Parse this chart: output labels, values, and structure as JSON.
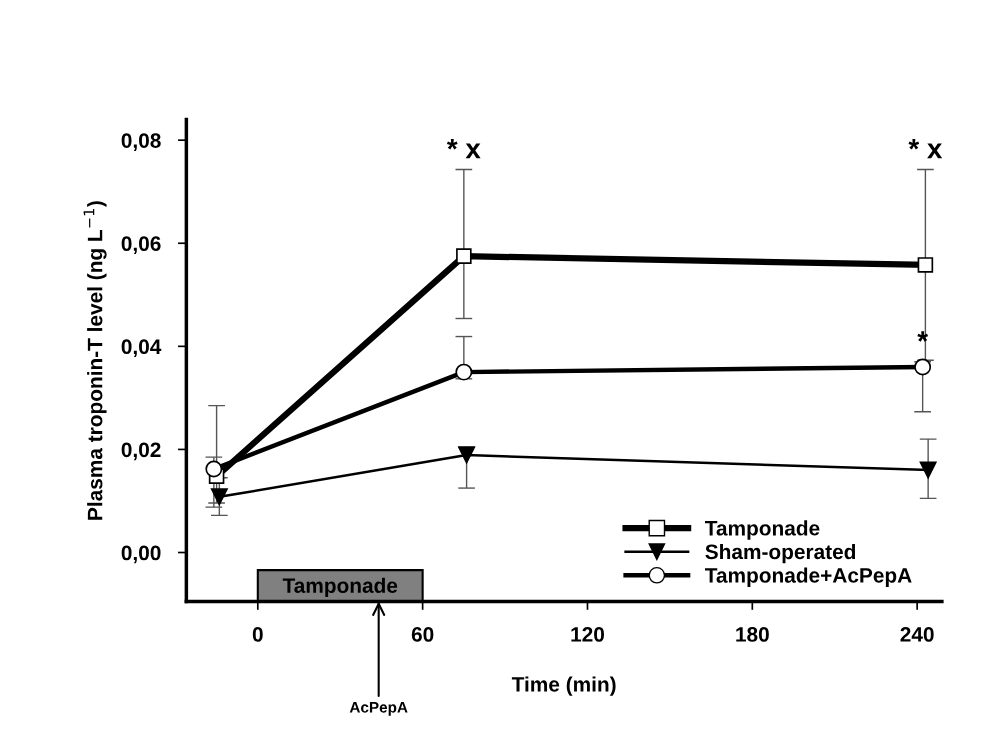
{
  "chart_data": {
    "type": "line",
    "xlabel": "Time (min)",
    "ylabel": "Plasma troponin-T level (ng L$^{−1}$)",
    "xlim": [
      -26,
      249
    ],
    "xticks": [
      0,
      60,
      120,
      180,
      240
    ],
    "ylim": [
      -0.0095,
      0.084
    ],
    "yticks": [
      {
        "value": 0,
        "label": "0,00"
      },
      {
        "value": 0.02,
        "label": "0,02"
      },
      {
        "value": 0.04,
        "label": "0,04"
      },
      {
        "value": 0.06,
        "label": "0,06"
      },
      {
        "value": 0.08,
        "label": "0,08"
      }
    ],
    "grid": false,
    "legend": "bottom right",
    "series": [
      {
        "name": "Tamponade",
        "color": "#000000",
        "marker": "square",
        "x": [
          -15,
          75,
          243
        ],
        "values": [
          0.0148,
          0.0575,
          0.0558
        ],
        "errors": [
          [
            0.0096,
            0.0285
          ],
          [
            0.0454,
            0.0743
          ],
          [
            0.0373,
            0.0743
          ]
        ]
      },
      {
        "name": "Sham-operated",
        "color": "#000000",
        "marker": "triangle",
        "x": [
          -14,
          76,
          244
        ],
        "values": [
          0.0108,
          0.0189,
          0.016
        ],
        "errors": [
          [
            0.0072,
            0.0145
          ],
          [
            0.0125,
            0.0205
          ],
          [
            0.0105,
            0.022
          ]
        ]
      },
      {
        "name": "Tamponade+AcPepA",
        "color": "#000000",
        "marker": "circle",
        "x": [
          -16,
          75,
          242
        ],
        "values": [
          0.0162,
          0.035,
          0.036
        ],
        "errors": [
          [
            0.0088,
            0.0185
          ],
          [
            0.0337,
            0.0419
          ],
          [
            0.0273,
            0.037
          ]
        ]
      }
    ],
    "bands": [
      {
        "axis": "x",
        "from": 0,
        "to": 60,
        "label": "Tamponade",
        "color": "#808080"
      }
    ],
    "annotations": [
      {
        "text": "* x",
        "x": 75,
        "y": 0.0743
      },
      {
        "text": "* x",
        "x": 243,
        "y": 0.0743
      },
      {
        "text": "*",
        "x": 242,
        "y": 0.037
      },
      {
        "text": "AcPepA",
        "x": 44,
        "y": -0.0095
      }
    ]
  }
}
